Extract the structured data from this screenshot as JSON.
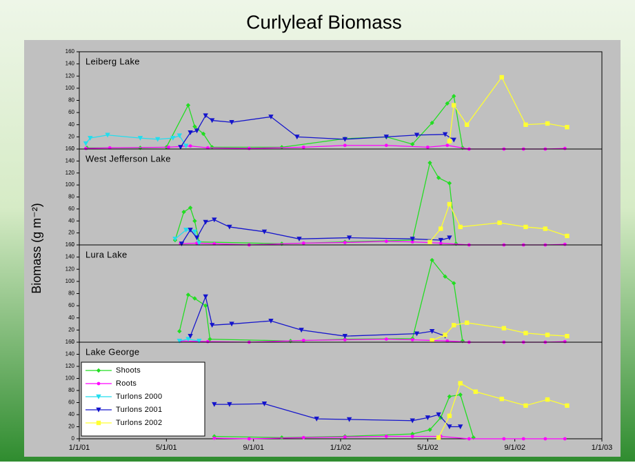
{
  "title": "Curlyleaf Biomass",
  "ylabel": "Biomass (g m⁻²)",
  "chart_data": [
    {
      "type": "line",
      "title": "Leiberg Lake",
      "xlim": [
        0,
        24
      ],
      "ylim": [
        0,
        160
      ],
      "yticks": [
        0,
        20,
        40,
        60,
        80,
        100,
        120,
        140,
        160
      ],
      "series": [
        {
          "color": "#22dd22",
          "marker": "diamond",
          "x": [
            0.35,
            2.8,
            4.0,
            5.0,
            5.3,
            5.7,
            6.1,
            9.3,
            12.2,
            14.1,
            15.3,
            16.2,
            16.9,
            17.2,
            17.6
          ],
          "values": [
            2,
            2,
            3,
            72,
            37,
            25,
            3,
            3,
            17,
            20,
            8,
            43,
            75,
            87,
            2
          ]
        },
        {
          "color": "#ff00ff",
          "marker": "circle",
          "x": [
            0.3,
            1.4,
            4.1,
            5.1,
            5.9,
            7.8,
            10.3,
            12.2,
            14.1,
            16.0,
            16.9,
            17.9,
            19.5,
            20.4,
            21.4,
            22.3
          ],
          "values": [
            1,
            2,
            3,
            5,
            2,
            1,
            3,
            6,
            6,
            3,
            6,
            0,
            0,
            0,
            0,
            1
          ]
        },
        {
          "color": "#22ddee",
          "marker": "triangle-down",
          "x": [
            0.3,
            0.5,
            1.3,
            2.8,
            3.6,
            4.3,
            4.6,
            4.9
          ],
          "values": [
            9,
            18,
            23,
            18,
            16,
            18,
            22,
            5
          ]
        },
        {
          "color": "#1414cc",
          "marker": "triangle-down",
          "x": [
            4.65,
            5.1,
            5.4,
            5.8,
            6.1,
            7.0,
            8.8,
            10.0,
            12.2,
            14.1,
            15.5,
            16.8,
            17.2
          ],
          "values": [
            3,
            27,
            30,
            55,
            47,
            44,
            53,
            20,
            16,
            20,
            23,
            24,
            15
          ]
        },
        {
          "color": "#ffff33",
          "marker": "square",
          "x": [
            17.0,
            17.2,
            17.8,
            19.4,
            20.5,
            21.5,
            22.4
          ],
          "values": [
            13,
            72,
            40,
            118,
            40,
            42,
            36
          ]
        }
      ]
    },
    {
      "type": "line",
      "title": "West Jefferson Lake",
      "xlim": [
        0,
        24
      ],
      "ylim": [
        0,
        160
      ],
      "yticks": [
        0,
        20,
        40,
        60,
        80,
        100,
        120,
        140,
        160
      ],
      "series": [
        {
          "color": "#22dd22",
          "marker": "diamond",
          "x": [
            4.4,
            4.8,
            5.1,
            5.3,
            5.5,
            9.3,
            12.2,
            15.3,
            16.1,
            16.5,
            17.0,
            17.3
          ],
          "values": [
            8,
            55,
            62,
            40,
            5,
            2,
            5,
            8,
            137,
            112,
            103,
            2
          ]
        },
        {
          "color": "#ff00ff",
          "marker": "circle",
          "x": [
            4.65,
            5.4,
            6.2,
            7.8,
            10.3,
            12.2,
            14.1,
            15.3,
            16.6,
            17.9,
            19.5,
            20.4,
            21.4,
            22.3
          ],
          "values": [
            2,
            3,
            2,
            0,
            3,
            4,
            6,
            5,
            3,
            0,
            0,
            0,
            0,
            1
          ]
        },
        {
          "color": "#22ddee",
          "marker": "triangle-down",
          "x": [
            4.4,
            4.9,
            5.3,
            5.5
          ],
          "values": [
            10,
            25,
            22,
            3
          ]
        },
        {
          "color": "#1414cc",
          "marker": "triangle-down",
          "x": [
            4.7,
            5.1,
            5.4,
            5.8,
            6.2,
            6.9,
            8.5,
            10.1,
            12.4,
            15.3,
            16.6,
            17.0
          ],
          "values": [
            2,
            25,
            12,
            38,
            42,
            30,
            22,
            10,
            12,
            10,
            8,
            12
          ]
        },
        {
          "color": "#ffff33",
          "marker": "square",
          "x": [
            16.1,
            16.6,
            17.0,
            17.5,
            19.3,
            20.5,
            21.4,
            22.4
          ],
          "values": [
            5,
            27,
            68,
            30,
            37,
            30,
            27,
            15
          ]
        }
      ]
    },
    {
      "type": "line",
      "title": "Lura Lake",
      "xlim": [
        0,
        24
      ],
      "ylim": [
        0,
        160
      ],
      "yticks": [
        0,
        20,
        40,
        60,
        80,
        100,
        120,
        140,
        160
      ],
      "series": [
        {
          "color": "#22dd22",
          "marker": "diamond",
          "x": [
            4.6,
            5.0,
            5.3,
            5.8,
            6.0,
            9.7,
            12.2,
            15.3,
            16.2,
            16.8,
            17.2,
            17.6
          ],
          "values": [
            18,
            78,
            72,
            60,
            5,
            2,
            5,
            6,
            135,
            108,
            97,
            2
          ]
        },
        {
          "color": "#ff00ff",
          "marker": "circle",
          "x": [
            4.65,
            5.9,
            7.8,
            10.3,
            12.2,
            14.1,
            15.3,
            16.9,
            17.9,
            19.5,
            20.4,
            21.4,
            22.3
          ],
          "values": [
            2,
            1,
            0,
            3,
            4,
            5,
            4,
            2,
            0,
            0,
            0,
            0,
            1
          ]
        },
        {
          "color": "#22ddee",
          "marker": "triangle-down",
          "x": [
            4.6,
            5.0,
            5.5
          ],
          "values": [
            2,
            5,
            2
          ]
        },
        {
          "color": "#1414cc",
          "marker": "triangle-down",
          "x": [
            5.1,
            5.8,
            6.1,
            7.0,
            8.8,
            10.2,
            12.2,
            15.5,
            16.2,
            16.8
          ],
          "values": [
            10,
            75,
            28,
            30,
            35,
            20,
            10,
            14,
            18,
            10
          ]
        },
        {
          "color": "#ffff33",
          "marker": "square",
          "x": [
            16.2,
            16.8,
            17.2,
            17.8,
            19.5,
            20.5,
            21.5,
            22.4
          ],
          "values": [
            3,
            12,
            28,
            32,
            23,
            15,
            12,
            10
          ]
        }
      ]
    },
    {
      "type": "line",
      "title": "Lake George",
      "xlim": [
        0,
        24
      ],
      "ylim": [
        0,
        160
      ],
      "yticks": [
        0,
        20,
        40,
        60,
        80,
        100,
        120,
        140,
        160
      ],
      "xticks": [
        {
          "value": 0,
          "label": "1/1/01"
        },
        {
          "value": 4,
          "label": "5/1/01"
        },
        {
          "value": 8,
          "label": "9/1/01"
        },
        {
          "value": 12,
          "label": "1/1/02"
        },
        {
          "value": 16,
          "label": "5/1/02"
        },
        {
          "value": 20,
          "label": "9/1/02"
        },
        {
          "value": 24,
          "label": "1/1/03"
        }
      ],
      "legend": "lower left",
      "series": [
        {
          "name": "Shoots",
          "color": "#22dd22",
          "marker": "diamond",
          "x": [
            6.2,
            9.3,
            12.2,
            15.3,
            16.1,
            16.6,
            17.0,
            17.5,
            18.1
          ],
          "values": [
            4,
            2,
            4,
            8,
            15,
            35,
            70,
            73,
            2
          ]
        },
        {
          "name": "Roots",
          "color": "#ff00ff",
          "marker": "circle",
          "x": [
            6.2,
            7.8,
            10.3,
            12.2,
            14.1,
            15.3,
            16.6,
            17.9,
            19.5,
            20.4,
            21.4,
            22.3
          ],
          "values": [
            1,
            0,
            2,
            3,
            4,
            4,
            4,
            0,
            0,
            0,
            0,
            0
          ]
        },
        {
          "name": "Turlons 2000",
          "color": "#22ddee",
          "marker": "triangle-down",
          "x": [],
          "values": []
        },
        {
          "name": "Turlons 2001",
          "color": "#1414cc",
          "marker": "triangle-down",
          "x": [
            6.2,
            6.9,
            8.5,
            10.9,
            12.4,
            15.3,
            16.0,
            16.5,
            17.0,
            17.5
          ],
          "values": [
            57,
            57,
            58,
            33,
            32,
            30,
            35,
            40,
            20,
            20
          ]
        },
        {
          "name": "Turlons 2002",
          "color": "#ffff33",
          "marker": "square",
          "x": [
            16.5,
            17.0,
            17.5,
            18.2,
            19.4,
            20.5,
            21.5,
            22.4
          ],
          "values": [
            2,
            38,
            92,
            78,
            66,
            55,
            65,
            55
          ]
        }
      ]
    }
  ]
}
